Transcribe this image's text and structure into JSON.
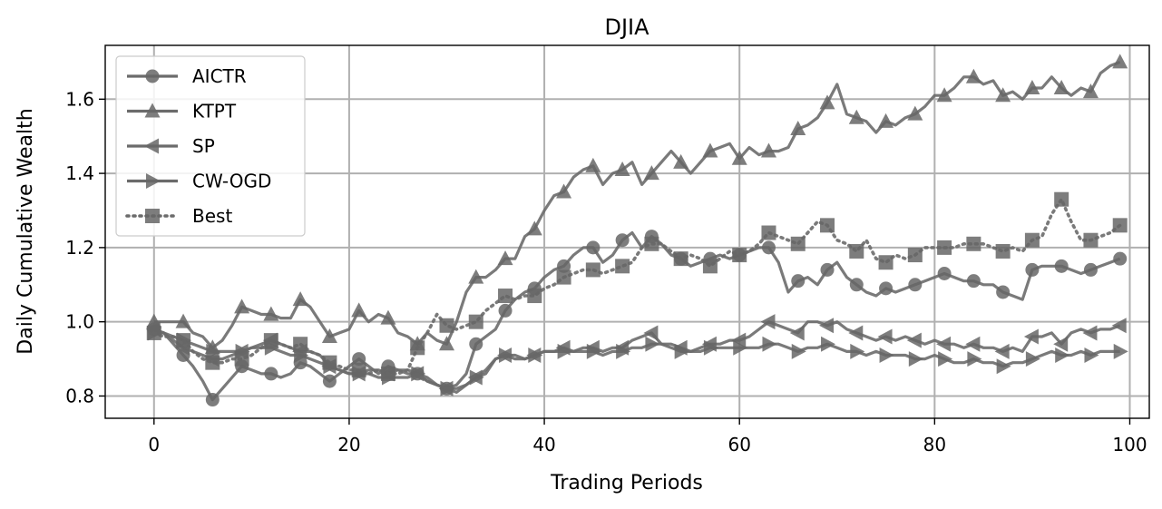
{
  "chart_data": {
    "type": "line",
    "title": "DJIA",
    "xlabel": "Trading Periods",
    "ylabel": "Daily Cumulative Wealth",
    "xlim": [
      -5,
      102
    ],
    "ylim": [
      0.74,
      1.745
    ],
    "xticks": [
      0,
      20,
      40,
      60,
      80,
      100
    ],
    "yticks": [
      0.8,
      1.0,
      1.2,
      1.4,
      1.6
    ],
    "ytick_labels": [
      "0.8",
      "1.0",
      "1.2",
      "1.4",
      "1.6"
    ],
    "grid": true,
    "legend_position": "top-left",
    "line_color": "#6b6b6b",
    "marker_color": "#666666",
    "grid_color": "#b0b0b0",
    "marker_every": 3,
    "series": [
      {
        "name": "AICTR",
        "marker": "circle",
        "linestyle": "solid",
        "x": [
          0,
          1,
          2,
          3,
          4,
          5,
          6,
          7,
          8,
          9,
          10,
          11,
          12,
          13,
          14,
          15,
          16,
          17,
          18,
          19,
          20,
          21,
          22,
          23,
          24,
          25,
          26,
          27,
          28,
          29,
          30,
          31,
          32,
          33,
          34,
          35,
          36,
          37,
          38,
          39,
          40,
          41,
          42,
          43,
          44,
          45,
          46,
          47,
          48,
          49,
          50,
          51,
          52,
          53,
          54,
          55,
          56,
          57,
          58,
          59,
          60,
          61,
          62,
          63,
          64,
          65,
          66,
          67,
          68,
          69,
          70,
          71,
          72,
          73,
          74,
          75,
          76,
          77,
          78,
          79,
          80,
          81,
          82,
          83,
          84,
          85,
          86,
          87,
          88,
          89,
          90,
          91,
          92,
          93,
          94,
          95,
          96,
          97,
          98,
          99
        ],
        "y": [
          0.98,
          0.97,
          0.94,
          0.91,
          0.88,
          0.84,
          0.79,
          0.82,
          0.85,
          0.88,
          0.87,
          0.86,
          0.86,
          0.85,
          0.86,
          0.89,
          0.88,
          0.86,
          0.84,
          0.86,
          0.88,
          0.9,
          0.88,
          0.86,
          0.88,
          0.87,
          0.86,
          0.86,
          0.84,
          0.83,
          0.82,
          0.83,
          0.86,
          0.94,
          0.96,
          0.98,
          1.03,
          1.06,
          1.08,
          1.09,
          1.12,
          1.14,
          1.15,
          1.18,
          1.2,
          1.2,
          1.16,
          1.18,
          1.22,
          1.24,
          1.2,
          1.23,
          1.21,
          1.18,
          1.17,
          1.15,
          1.16,
          1.17,
          1.18,
          1.17,
          1.18,
          1.19,
          1.2,
          1.2,
          1.16,
          1.08,
          1.11,
          1.12,
          1.1,
          1.14,
          1.16,
          1.12,
          1.1,
          1.08,
          1.07,
          1.09,
          1.08,
          1.09,
          1.1,
          1.11,
          1.12,
          1.13,
          1.12,
          1.11,
          1.11,
          1.1,
          1.1,
          1.08,
          1.07,
          1.06,
          1.14,
          1.15,
          1.15,
          1.15,
          1.14,
          1.13,
          1.14,
          1.15,
          1.16,
          1.17
        ]
      },
      {
        "name": "KTPT",
        "marker": "triangle-up",
        "linestyle": "solid",
        "x": [
          0,
          1,
          2,
          3,
          4,
          5,
          6,
          7,
          8,
          9,
          10,
          11,
          12,
          13,
          14,
          15,
          16,
          17,
          18,
          19,
          20,
          21,
          22,
          23,
          24,
          25,
          26,
          27,
          28,
          29,
          30,
          31,
          32,
          33,
          34,
          35,
          36,
          37,
          38,
          39,
          40,
          41,
          42,
          43,
          44,
          45,
          46,
          47,
          48,
          49,
          50,
          51,
          52,
          53,
          54,
          55,
          56,
          57,
          58,
          59,
          60,
          61,
          62,
          63,
          64,
          65,
          66,
          67,
          68,
          69,
          70,
          71,
          72,
          73,
          74,
          75,
          76,
          77,
          78,
          79,
          80,
          81,
          82,
          83,
          84,
          85,
          86,
          87,
          88,
          89,
          90,
          91,
          92,
          93,
          94,
          95,
          96,
          97,
          98,
          99
        ],
        "y": [
          1.0,
          1.0,
          1.0,
          1.0,
          0.97,
          0.96,
          0.93,
          0.95,
          0.99,
          1.04,
          1.03,
          1.02,
          1.02,
          1.01,
          1.01,
          1.06,
          1.04,
          1.0,
          0.96,
          0.97,
          0.98,
          1.03,
          1.0,
          1.02,
          1.01,
          0.97,
          0.96,
          0.94,
          0.97,
          0.95,
          0.94,
          1.0,
          1.08,
          1.12,
          1.12,
          1.14,
          1.17,
          1.17,
          1.23,
          1.25,
          1.3,
          1.34,
          1.35,
          1.39,
          1.41,
          1.42,
          1.37,
          1.4,
          1.41,
          1.43,
          1.37,
          1.4,
          1.43,
          1.46,
          1.43,
          1.4,
          1.43,
          1.46,
          1.47,
          1.48,
          1.44,
          1.47,
          1.45,
          1.46,
          1.46,
          1.47,
          1.52,
          1.53,
          1.55,
          1.59,
          1.64,
          1.56,
          1.55,
          1.54,
          1.51,
          1.54,
          1.53,
          1.55,
          1.56,
          1.58,
          1.61,
          1.61,
          1.63,
          1.66,
          1.66,
          1.64,
          1.65,
          1.61,
          1.62,
          1.6,
          1.63,
          1.63,
          1.66,
          1.63,
          1.61,
          1.63,
          1.62,
          1.67,
          1.69,
          1.7
        ]
      },
      {
        "name": "SP",
        "marker": "triangle-left",
        "linestyle": "solid",
        "x": [
          0,
          1,
          2,
          3,
          4,
          5,
          6,
          7,
          8,
          9,
          10,
          11,
          12,
          13,
          14,
          15,
          16,
          17,
          18,
          19,
          20,
          21,
          22,
          23,
          24,
          25,
          26,
          27,
          28,
          29,
          30,
          31,
          32,
          33,
          34,
          35,
          36,
          37,
          38,
          39,
          40,
          41,
          42,
          43,
          44,
          45,
          46,
          47,
          48,
          49,
          50,
          51,
          52,
          53,
          54,
          55,
          56,
          57,
          58,
          59,
          60,
          61,
          62,
          63,
          64,
          65,
          66,
          67,
          68,
          69,
          70,
          71,
          72,
          73,
          74,
          75,
          76,
          77,
          78,
          79,
          80,
          81,
          82,
          83,
          84,
          85,
          86,
          87,
          88,
          89,
          90,
          91,
          92,
          93,
          94,
          95,
          96,
          97,
          98,
          99
        ],
        "y": [
          0.98,
          0.97,
          0.95,
          0.93,
          0.92,
          0.91,
          0.9,
          0.9,
          0.91,
          0.92,
          0.93,
          0.94,
          0.95,
          0.94,
          0.93,
          0.92,
          0.92,
          0.91,
          0.88,
          0.87,
          0.86,
          0.86,
          0.87,
          0.87,
          0.86,
          0.87,
          0.87,
          0.86,
          0.85,
          0.83,
          0.82,
          0.81,
          0.83,
          0.85,
          0.86,
          0.9,
          0.91,
          0.9,
          0.9,
          0.91,
          0.92,
          0.92,
          0.93,
          0.92,
          0.93,
          0.93,
          0.92,
          0.93,
          0.93,
          0.95,
          0.96,
          0.97,
          0.94,
          0.94,
          0.93,
          0.92,
          0.93,
          0.94,
          0.94,
          0.95,
          0.95,
          0.96,
          0.98,
          1.0,
          0.99,
          0.98,
          0.97,
          1.0,
          1.0,
          0.99,
          1.0,
          0.98,
          0.97,
          0.96,
          0.95,
          0.96,
          0.95,
          0.96,
          0.95,
          0.94,
          0.95,
          0.94,
          0.94,
          0.93,
          0.94,
          0.93,
          0.93,
          0.92,
          0.93,
          0.92,
          0.96,
          0.96,
          0.97,
          0.94,
          0.97,
          0.98,
          0.97,
          0.98,
          0.98,
          0.99
        ]
      },
      {
        "name": "CW-OGD",
        "marker": "triangle-right",
        "linestyle": "solid",
        "x": [
          0,
          1,
          2,
          3,
          4,
          5,
          6,
          7,
          8,
          9,
          10,
          11,
          12,
          13,
          14,
          15,
          16,
          17,
          18,
          19,
          20,
          21,
          22,
          23,
          24,
          25,
          26,
          27,
          28,
          29,
          30,
          31,
          32,
          33,
          34,
          35,
          36,
          37,
          38,
          39,
          40,
          41,
          42,
          43,
          44,
          45,
          46,
          47,
          48,
          49,
          50,
          51,
          52,
          53,
          54,
          55,
          56,
          57,
          58,
          59,
          60,
          61,
          62,
          63,
          64,
          65,
          66,
          67,
          68,
          69,
          70,
          71,
          72,
          73,
          74,
          75,
          76,
          77,
          78,
          79,
          80,
          81,
          82,
          83,
          84,
          85,
          86,
          87,
          88,
          89,
          90,
          91,
          92,
          93,
          94,
          95,
          96,
          97,
          98,
          99
        ],
        "y": [
          0.97,
          0.97,
          0.96,
          0.95,
          0.94,
          0.93,
          0.92,
          0.92,
          0.92,
          0.92,
          0.93,
          0.93,
          0.93,
          0.92,
          0.91,
          0.91,
          0.9,
          0.89,
          0.88,
          0.87,
          0.86,
          0.86,
          0.86,
          0.85,
          0.85,
          0.85,
          0.85,
          0.86,
          0.84,
          0.83,
          0.82,
          0.82,
          0.83,
          0.85,
          0.87,
          0.9,
          0.91,
          0.91,
          0.9,
          0.91,
          0.92,
          0.92,
          0.92,
          0.92,
          0.92,
          0.92,
          0.91,
          0.92,
          0.92,
          0.93,
          0.93,
          0.94,
          0.94,
          0.93,
          0.92,
          0.92,
          0.92,
          0.93,
          0.93,
          0.93,
          0.93,
          0.93,
          0.93,
          0.94,
          0.94,
          0.93,
          0.92,
          0.93,
          0.93,
          0.94,
          0.93,
          0.92,
          0.92,
          0.91,
          0.92,
          0.91,
          0.91,
          0.91,
          0.9,
          0.9,
          0.91,
          0.9,
          0.89,
          0.89,
          0.9,
          0.89,
          0.89,
          0.88,
          0.89,
          0.89,
          0.9,
          0.91,
          0.92,
          0.91,
          0.91,
          0.92,
          0.91,
          0.92,
          0.92,
          0.92
        ]
      },
      {
        "name": "Best",
        "marker": "square",
        "linestyle": "dotted",
        "x": [
          0,
          1,
          2,
          3,
          4,
          5,
          6,
          7,
          8,
          9,
          10,
          11,
          12,
          13,
          14,
          15,
          16,
          17,
          18,
          19,
          20,
          21,
          22,
          23,
          24,
          25,
          26,
          27,
          28,
          29,
          30,
          31,
          32,
          33,
          34,
          35,
          36,
          37,
          38,
          39,
          40,
          41,
          42,
          43,
          44,
          45,
          46,
          47,
          48,
          49,
          50,
          51,
          52,
          53,
          54,
          55,
          56,
          57,
          58,
          59,
          60,
          61,
          62,
          63,
          64,
          65,
          66,
          67,
          68,
          69,
          70,
          71,
          72,
          73,
          74,
          75,
          76,
          77,
          78,
          79,
          80,
          81,
          82,
          83,
          84,
          85,
          86,
          87,
          88,
          89,
          90,
          91,
          92,
          93,
          94,
          95,
          96,
          97,
          98,
          99
        ],
        "y": [
          0.97,
          0.96,
          0.96,
          0.95,
          0.92,
          0.9,
          0.89,
          0.89,
          0.9,
          0.9,
          0.91,
          0.93,
          0.95,
          0.94,
          0.93,
          0.94,
          0.92,
          0.91,
          0.89,
          0.88,
          0.87,
          0.87,
          0.86,
          0.87,
          0.86,
          0.86,
          0.87,
          0.93,
          0.97,
          1.02,
          0.99,
          0.98,
          0.99,
          1.0,
          1.03,
          1.05,
          1.07,
          1.06,
          1.07,
          1.07,
          1.09,
          1.1,
          1.12,
          1.13,
          1.14,
          1.14,
          1.13,
          1.14,
          1.15,
          1.16,
          1.2,
          1.21,
          1.21,
          1.19,
          1.17,
          1.18,
          1.17,
          1.15,
          1.17,
          1.19,
          1.18,
          1.19,
          1.21,
          1.24,
          1.23,
          1.22,
          1.21,
          1.24,
          1.27,
          1.26,
          1.22,
          1.21,
          1.19,
          1.22,
          1.17,
          1.16,
          1.18,
          1.17,
          1.18,
          1.2,
          1.2,
          1.2,
          1.2,
          1.21,
          1.21,
          1.21,
          1.2,
          1.19,
          1.2,
          1.19,
          1.22,
          1.23,
          1.29,
          1.33,
          1.27,
          1.22,
          1.22,
          1.23,
          1.24,
          1.26
        ]
      }
    ]
  }
}
